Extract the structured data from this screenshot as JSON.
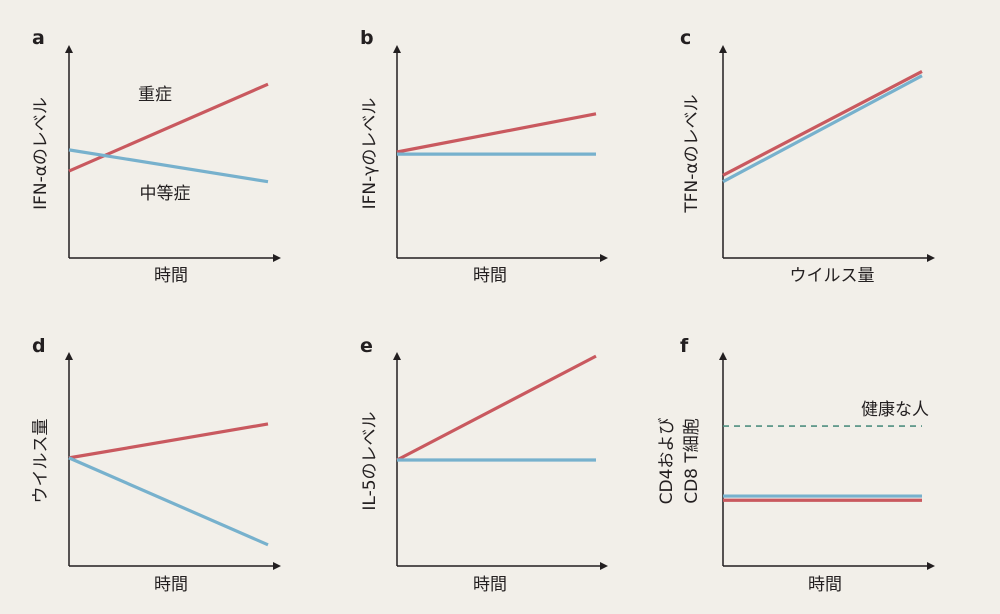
{
  "colors": {
    "background": "#f2efe9",
    "axis": "#231f20",
    "red_series": "#c9595f",
    "blue_series": "#77b1cd",
    "dashed": "#4f8f80"
  },
  "chart_data": [
    {
      "panel": "a",
      "type": "line",
      "xlabel": "時間",
      "ylabel": "IFN-αのレベル",
      "xlim": [
        0,
        1
      ],
      "ylim": [
        0,
        1
      ],
      "series": [
        {
          "color": "red",
          "label": "重症",
          "x": [
            0,
            1
          ],
          "y": [
            0.41,
            0.82
          ]
        },
        {
          "color": "blue",
          "label": "中等症",
          "x": [
            0,
            1
          ],
          "y": [
            0.51,
            0.36
          ]
        }
      ]
    },
    {
      "panel": "b",
      "type": "line",
      "xlabel": "時間",
      "ylabel": "IFN-γのレベル",
      "xlim": [
        0,
        1
      ],
      "ylim": [
        0,
        1
      ],
      "series": [
        {
          "color": "red",
          "x": [
            0,
            1
          ],
          "y": [
            0.5,
            0.68
          ]
        },
        {
          "color": "blue",
          "x": [
            0,
            1
          ],
          "y": [
            0.49,
            0.49
          ]
        }
      ]
    },
    {
      "panel": "c",
      "type": "line",
      "xlabel": "ウイルス量",
      "ylabel": "TFN-αのレベル",
      "xlim": [
        0,
        1
      ],
      "ylim": [
        0,
        1
      ],
      "series": [
        {
          "color": "red",
          "x": [
            0,
            1
          ],
          "y": [
            0.39,
            0.88
          ]
        },
        {
          "color": "blue",
          "x": [
            0,
            1
          ],
          "y": [
            0.36,
            0.86
          ]
        }
      ]
    },
    {
      "panel": "d",
      "type": "line",
      "xlabel": "時間",
      "ylabel": "ウイルス量",
      "xlim": [
        0,
        1
      ],
      "ylim": [
        0,
        1
      ],
      "series": [
        {
          "color": "red",
          "x": [
            0,
            1
          ],
          "y": [
            0.51,
            0.67
          ]
        },
        {
          "color": "blue",
          "x": [
            0,
            1
          ],
          "y": [
            0.51,
            0.1
          ]
        }
      ]
    },
    {
      "panel": "e",
      "type": "line",
      "xlabel": "時間",
      "ylabel": "IL-5のレベル",
      "xlim": [
        0,
        1
      ],
      "ylim": [
        0,
        1
      ],
      "series": [
        {
          "color": "red",
          "x": [
            0,
            1
          ],
          "y": [
            0.5,
            0.99
          ]
        },
        {
          "color": "blue",
          "x": [
            0,
            1
          ],
          "y": [
            0.5,
            0.5
          ]
        }
      ]
    },
    {
      "panel": "f",
      "type": "line",
      "xlabel": "時間",
      "ylabel": [
        "CD4および",
        "CD8 T細胞"
      ],
      "xlim": [
        0,
        1
      ],
      "ylim": [
        0,
        1
      ],
      "series": [
        {
          "color": "dashed",
          "label": "健康な人",
          "x": [
            0,
            1
          ],
          "y": [
            0.66,
            0.66
          ]
        },
        {
          "color": "blue",
          "x": [
            0,
            1
          ],
          "y": [
            0.33,
            0.33
          ]
        },
        {
          "color": "red",
          "x": [
            0,
            1
          ],
          "y": [
            0.31,
            0.31
          ]
        }
      ]
    }
  ]
}
